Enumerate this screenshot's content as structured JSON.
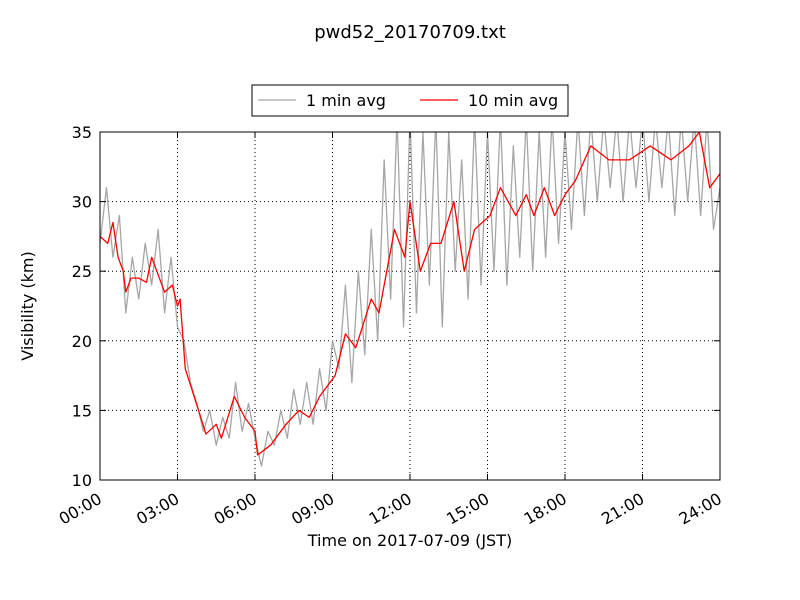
{
  "chart_data": {
    "type": "line",
    "title": "pwd52_20170709.txt",
    "x_label": "Time on 2017-07-09 (JST)",
    "y_label": "Visibility (km)",
    "xlim": [
      0,
      24
    ],
    "ylim": [
      10,
      35
    ],
    "xticks": [
      {
        "value": 0,
        "label": "00:00"
      },
      {
        "value": 3,
        "label": "03:00"
      },
      {
        "value": 6,
        "label": "06:00"
      },
      {
        "value": 9,
        "label": "09:00"
      },
      {
        "value": 12,
        "label": "12:00"
      },
      {
        "value": 15,
        "label": "15:00"
      },
      {
        "value": 18,
        "label": "18:00"
      },
      {
        "value": 21,
        "label": "21:00"
      },
      {
        "value": 24,
        "label": "24:00"
      }
    ],
    "yticks": [
      10,
      15,
      20,
      25,
      30,
      35
    ],
    "grid": true,
    "legend": "top",
    "series": [
      {
        "name": "1 min avg",
        "color": "#a6a6a6",
        "x": [
          0,
          0.25,
          0.5,
          0.75,
          1,
          1.25,
          1.5,
          1.75,
          2,
          2.25,
          2.5,
          2.75,
          3,
          3.25,
          3.5,
          3.75,
          4,
          4.25,
          4.5,
          4.75,
          5,
          5.25,
          5.5,
          5.75,
          6,
          6.25,
          6.5,
          6.75,
          7,
          7.25,
          7.5,
          7.75,
          8,
          8.25,
          8.5,
          8.75,
          9,
          9.25,
          9.5,
          9.75,
          10,
          10.25,
          10.5,
          10.75,
          11,
          11.25,
          11.5,
          11.75,
          12,
          12.25,
          12.5,
          12.75,
          13,
          13.25,
          13.5,
          13.75,
          14,
          14.25,
          14.5,
          14.75,
          15,
          15.25,
          15.5,
          15.75,
          16,
          16.25,
          16.5,
          16.75,
          17,
          17.25,
          17.5,
          17.75,
          18,
          18.25,
          18.5,
          18.75,
          19,
          19.25,
          19.5,
          19.75,
          20,
          20.25,
          20.5,
          20.75,
          21,
          21.25,
          21.5,
          21.75,
          22,
          22.25,
          22.5,
          22.75,
          23,
          23.25,
          23.5,
          23.75,
          24
        ],
        "values": [
          27,
          31,
          26,
          29,
          22,
          26,
          23,
          27,
          24,
          28,
          22,
          26,
          21,
          20,
          17,
          15.5,
          13.5,
          15,
          12.5,
          14.5,
          13,
          17,
          13.5,
          15.5,
          13,
          11,
          13.5,
          12.5,
          15,
          13,
          16.5,
          14,
          17,
          14,
          18,
          15,
          20,
          18,
          24,
          17,
          25,
          19,
          28,
          20,
          33,
          23,
          36,
          21,
          36,
          22,
          35,
          24,
          36,
          21,
          35,
          25,
          33,
          23,
          36,
          24,
          35,
          25,
          36,
          24,
          34,
          26,
          36,
          25,
          35,
          26,
          36,
          27,
          35,
          28,
          36,
          29,
          36,
          30,
          36,
          31,
          36,
          30,
          36,
          31,
          36,
          30,
          36,
          31,
          36,
          29,
          36,
          30,
          36,
          29,
          36,
          28,
          31
        ]
      },
      {
        "name": "10 min avg",
        "color": "#ff0000",
        "x": [
          0,
          0.3,
          0.5,
          0.7,
          0.9,
          1.0,
          1.2,
          1.5,
          1.8,
          2.0,
          2.2,
          2.5,
          2.8,
          3.0,
          3.1,
          3.3,
          3.9,
          4.1,
          4.5,
          4.7,
          5.2,
          5.6,
          6.0,
          6.1,
          6.6,
          7.2,
          7.7,
          8.1,
          8.5,
          9.1,
          9.5,
          9.9,
          10.5,
          10.8,
          11.4,
          11.8,
          12.0,
          12.4,
          12.8,
          13.2,
          13.7,
          14.1,
          14.5,
          15.1,
          15.5,
          16.1,
          16.5,
          16.8,
          17.2,
          17.6,
          18.0,
          18.4,
          19.0,
          19.7,
          20.5,
          21.3,
          22.1,
          22.8,
          23.2,
          23.6,
          24.0
        ],
        "values": [
          27.5,
          27,
          28.5,
          26,
          25,
          23.5,
          24.5,
          24.5,
          24.2,
          26,
          25,
          23.5,
          24,
          22.5,
          23,
          18,
          14.5,
          13.3,
          14,
          13,
          16,
          14.5,
          13.5,
          11.8,
          12.5,
          14,
          15,
          14.5,
          16,
          17.5,
          20.5,
          19.5,
          23,
          22,
          28,
          26,
          30,
          25,
          27,
          27,
          30,
          25,
          28,
          29,
          31,
          29,
          30.5,
          29,
          31,
          29,
          30.5,
          31.5,
          34,
          33,
          33,
          34,
          33,
          34,
          35,
          31,
          32
        ]
      }
    ]
  }
}
